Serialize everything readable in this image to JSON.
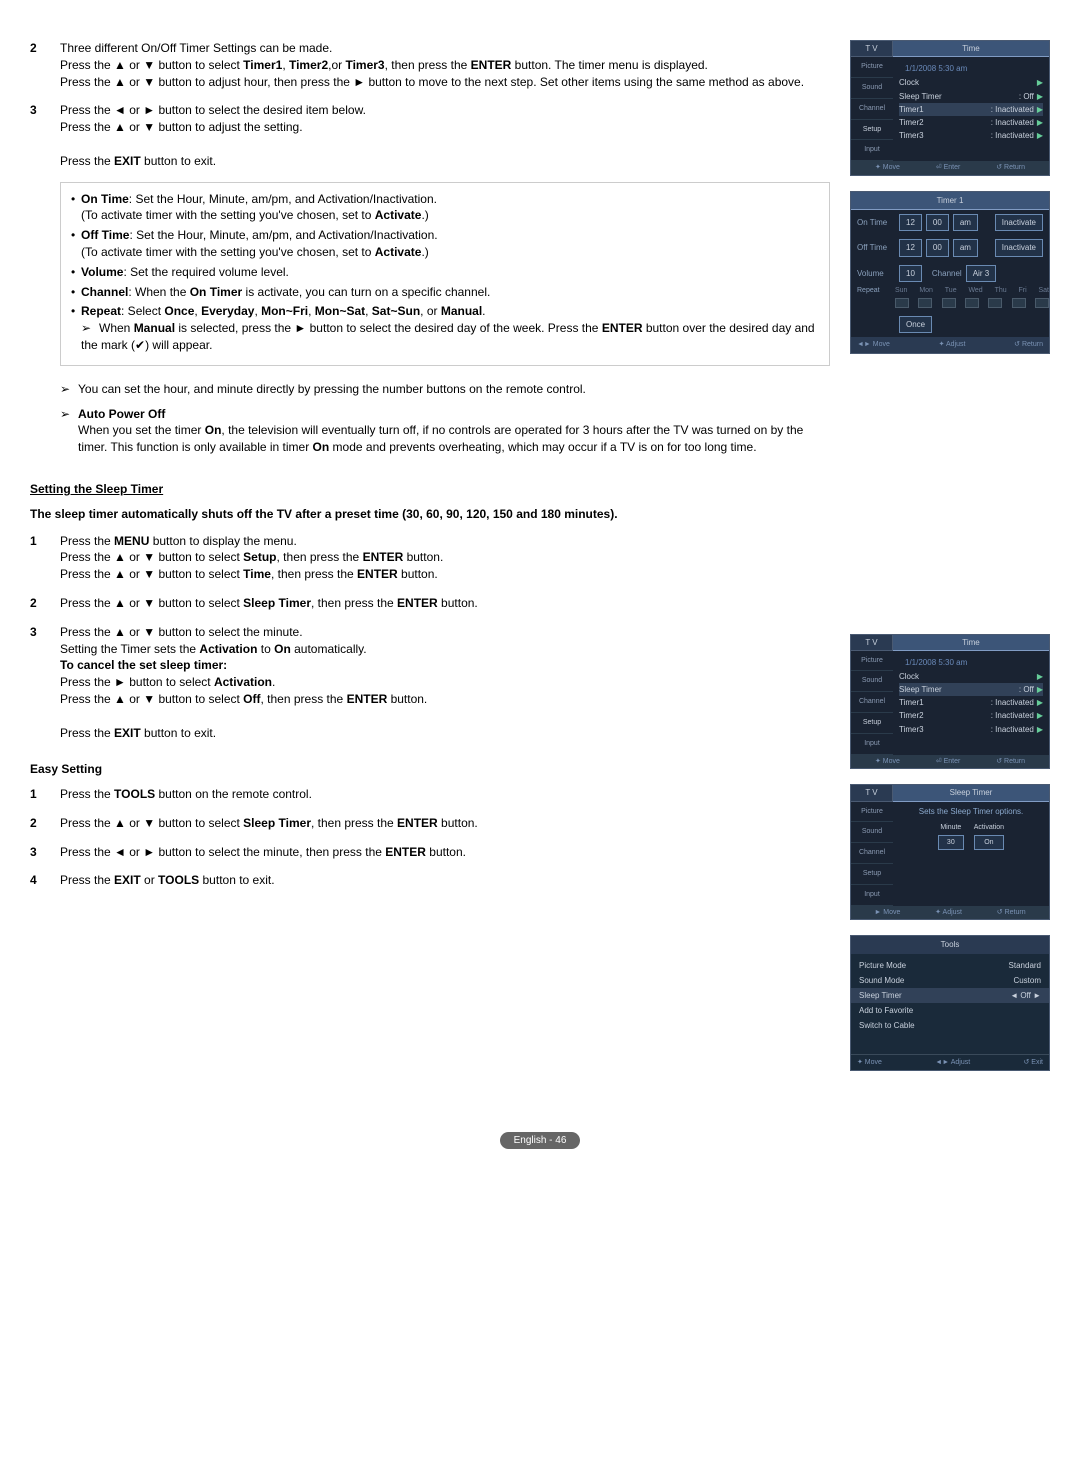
{
  "steps_top": [
    {
      "num": "2",
      "html": "Three different On/Off Timer Settings can be made.<br>Press the ▲ or ▼ button to select <b>Timer1</b>, <b>Timer2</b>,or <b>Timer3</b>, then press the <b>ENTER</b> button. The timer menu is displayed.<br>Press the ▲ or ▼ button to adjust hour, then press the ► button to move to the next step. Set other items using the same method as above."
    },
    {
      "num": "3",
      "html": "Press the ◄ or ► button to select the desired item below.<br>Press the ▲ or ▼ button to adjust the setting.<br><br>Press the <b>EXIT</b> button to exit."
    }
  ],
  "bullet_items": [
    "<b>On Time</b>: Set the Hour, Minute, am/pm, and Activation/Inactivation.<br>(To activate timer with the setting you've chosen, set to <b>Activate</b>.)",
    "<b>Off Time</b>: Set the Hour, Minute, am/pm, and Activation/Inactivation.<br>(To activate timer with the setting you've chosen, set to <b>Activate</b>.)",
    "<b>Volume</b>: Set the required volume level.",
    "<b>Channel</b>: When the <b>On Timer</b> is activate, you can turn on a specific channel.",
    "<b>Repeat</b>: Select <b>Once</b>, <b>Everyday</b>, <b>Mon~Fri</b>, <b>Mon~Sat</b>, <b>Sat~Sun</b>, or <b>Manual</b>.<br><span class='sub-arrow'>When <b>Manual</b> is selected, press the ► button to select the desired day of the week. Press the <b>ENTER</b> button over the desired day and the mark (<span class='icon-check'>✔</span>) will appear.</span>"
  ],
  "note_remote": "You can set the hour, and minute directly by pressing the number buttons on the remote control.",
  "auto_power_title": "Auto Power Off",
  "auto_power_body": "When you set the timer <b>On</b>, the television will eventually turn off, if no controls are operated for 3 hours after the TV was turned on by the timer. This function is only available in timer <b>On</b> mode and prevents overheating, which may occur if a TV is on for too long time.",
  "sleep_heading": "Setting the Sleep Timer",
  "sleep_intro": "The sleep timer automatically shuts off the TV after a preset time (30, 60, 90, 120, 150 and 180 minutes).",
  "sleep_steps": [
    {
      "num": "1",
      "html": "Press the <b>MENU</b> button to display the menu.<br>Press the ▲ or ▼ button to select <b>Setup</b>, then press the <b>ENTER</b> button.<br>Press the ▲ or ▼ button to select <b>Time</b>, then press the <b>ENTER</b> button."
    },
    {
      "num": "2",
      "html": "Press the ▲ or ▼ button to select <b>Sleep Timer</b>, then press the <b>ENTER</b> button."
    },
    {
      "num": "3",
      "html": "Press the ▲ or ▼ button to select the minute.<br>Setting the Timer sets the <b>Activation</b> to <b>On</b> automatically.<br><b>To cancel the set sleep timer:</b><br>Press the ► button to select <b>Activation</b>.<br>Press the ▲ or ▼ button to select <b>Off</b>, then press the <b>ENTER</b> button.<br><br>Press the <b>EXIT</b> button to exit."
    }
  ],
  "easy_heading": "Easy Setting",
  "easy_steps": [
    {
      "num": "1",
      "html": "Press the <b>TOOLS</b> button on the remote control."
    },
    {
      "num": "2",
      "html": "Press the ▲ or ▼ button to select <b>Sleep Timer</b>, then press the <b>ENTER</b> button."
    },
    {
      "num": "3",
      "html": "Press the ◄ or ► button to select the minute, then press the <b>ENTER</b> button."
    },
    {
      "num": "4",
      "html": "Press the <b>EXIT</b> or <b>TOOLS</b> button to exit."
    }
  ],
  "page_label": "English - 46",
  "osd1": {
    "tv": "T V",
    "title": "Time",
    "datetime": "1/1/2008 5:30 am",
    "tabs": [
      "Picture",
      "Sound",
      "Channel",
      "Setup",
      "Input"
    ],
    "rows": [
      {
        "l": "Clock",
        "v": "",
        "hl": false,
        "ar": true
      },
      {
        "l": "Sleep Timer",
        "v": ": Off",
        "hl": false,
        "ar": true
      },
      {
        "l": "Timer1",
        "v": ": Inactivated",
        "hl": true,
        "ar": true
      },
      {
        "l": "Timer2",
        "v": ": Inactivated",
        "hl": false,
        "ar": true
      },
      {
        "l": "Timer3",
        "v": ": Inactivated",
        "hl": false,
        "ar": true
      }
    ],
    "footer": [
      "✦ Move",
      "⏎ Enter",
      "↺ Return"
    ]
  },
  "timer": {
    "title": "Timer 1",
    "rows": [
      {
        "lbl": "On Time",
        "boxes": [
          "12",
          "00",
          "am"
        ],
        "tail": "Inactivate"
      },
      {
        "lbl": "Off Time",
        "boxes": [
          "12",
          "00",
          "am"
        ],
        "tail": "Inactivate"
      },
      {
        "lbl": "Volume",
        "boxes": [
          "10"
        ],
        "extra_lbl": "Channel",
        "extra_box": "Air 3"
      }
    ],
    "days_lbl": "Repeat",
    "days": [
      "Sun",
      "Mon",
      "Tue",
      "Wed",
      "Thu",
      "Fri",
      "Sat"
    ],
    "once_lbl": "",
    "once": "Once",
    "footer": [
      "◄► Move",
      "✦ Adjust",
      "↺ Return"
    ]
  },
  "osd2": {
    "tv": "T V",
    "title": "Time",
    "datetime": "1/1/2008 5:30 am",
    "tabs": [
      "Picture",
      "Sound",
      "Channel",
      "Setup",
      "Input"
    ],
    "rows": [
      {
        "l": "Clock",
        "v": "",
        "hl": false,
        "ar": true
      },
      {
        "l": "Sleep Timer",
        "v": ": Off",
        "hl": true,
        "ar": true
      },
      {
        "l": "Timer1",
        "v": ": Inactivated",
        "hl": false,
        "ar": true
      },
      {
        "l": "Timer2",
        "v": ": Inactivated",
        "hl": false,
        "ar": true
      },
      {
        "l": "Timer3",
        "v": ": Inactivated",
        "hl": false,
        "ar": true
      }
    ],
    "footer": [
      "✦ Move",
      "⏎ Enter",
      "↺ Return"
    ]
  },
  "osd_sleep": {
    "tv": "T V",
    "title": "Sleep Timer",
    "tabs": [
      "Picture",
      "Sound",
      "Channel",
      "Setup",
      "Input"
    ],
    "desc": "Sets the Sleep Timer options.",
    "cols": [
      {
        "h": "Minute",
        "v": "30"
      },
      {
        "h": "Activation",
        "v": "On"
      }
    ],
    "footer": [
      "► Move",
      "✦ Adjust",
      "↺ Return"
    ]
  },
  "tools": {
    "title": "Tools",
    "rows": [
      {
        "l": "Picture Mode",
        "v": "Standard",
        "hl": false
      },
      {
        "l": "Sound Mode",
        "v": "Custom",
        "hl": false
      },
      {
        "l": "Sleep Timer",
        "v": "◄    Off    ►",
        "hl": true
      },
      {
        "l": "Add to Favorite",
        "v": "",
        "hl": false
      },
      {
        "l": "Switch to Cable",
        "v": "",
        "hl": false
      }
    ],
    "footer": [
      "✦ Move",
      "◄► Adjust",
      "↺ Exit"
    ]
  }
}
